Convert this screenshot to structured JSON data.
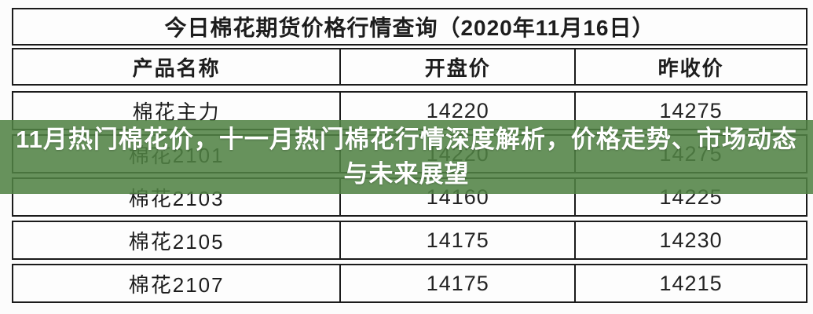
{
  "chart_data": {
    "type": "table",
    "title": "今日棉花期货价格行情查询（2020年11月16日）",
    "columns": [
      "产品名称",
      "开盘价",
      "昨收价"
    ],
    "rows": [
      [
        "棉花主力",
        "14220",
        "14275"
      ],
      [
        "棉花2101",
        "14220",
        "14275"
      ],
      [
        "棉花2103",
        "14160",
        "14225"
      ],
      [
        "棉花2105",
        "14175",
        "14230"
      ],
      [
        "棉花2107",
        "14175",
        "14215"
      ]
    ]
  },
  "overlay": {
    "line1": "11月热门棉花价，十一月热门棉花行情深度解析，价格走势、市场动态",
    "line2": "与未来展望",
    "background_color": "#508244",
    "text_color": "#ffffff"
  },
  "colors": {
    "table_border": "#1b1b1b",
    "table_text": "#1d1d1d",
    "page_background": "#fcfcfc"
  }
}
